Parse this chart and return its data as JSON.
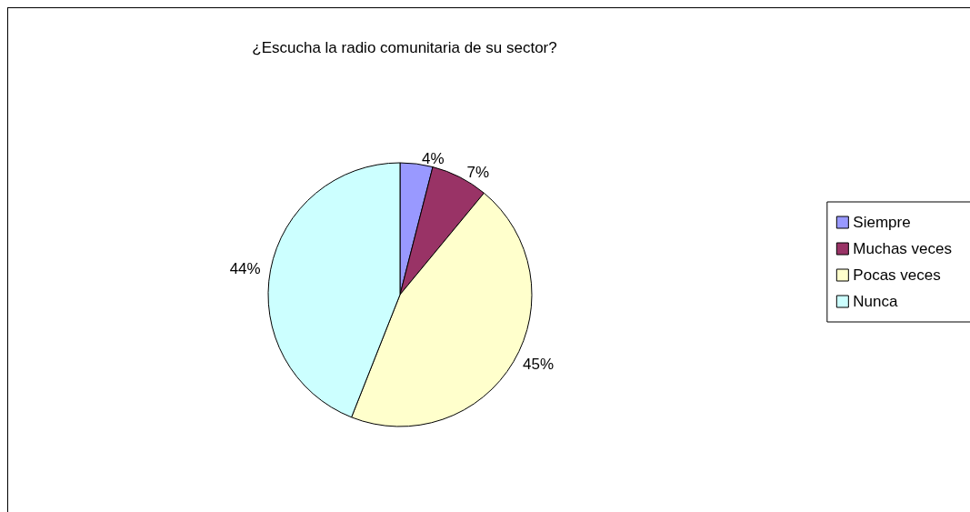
{
  "chart_data": {
    "type": "pie",
    "title": "¿Escucha la radio comunitaria de su sector?",
    "categories": [
      "Siempre",
      "Muchas veces",
      "Pocas veces",
      "Nunca"
    ],
    "values": [
      4,
      7,
      45,
      44
    ],
    "value_labels": [
      "4%",
      "7%",
      "45%",
      "44%"
    ],
    "colors": [
      "#9999ff",
      "#993366",
      "#ffffcc",
      "#ccffff"
    ],
    "legend": "right"
  }
}
